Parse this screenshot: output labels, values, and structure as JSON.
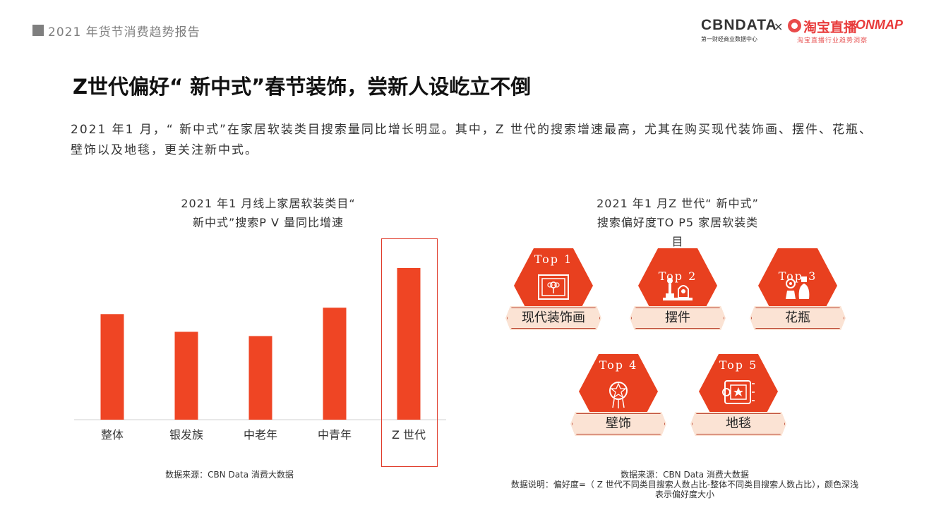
{
  "header": {
    "report_title": "2021 年货节消费趋势报告"
  },
  "logo": {
    "cbn_text": "CBNDATA",
    "cbn_sub": "第一财经商业数据中心",
    "cross": "×",
    "taobao_text": "淘宝直播",
    "onmap_text": "ONMAP",
    "taobao_sub": "淘宝直播行业趋势洞察"
  },
  "page": {
    "title": "Z世代偏好“ 新中式”春节装饰，尝新人设屹立不倒",
    "description": "2021 年1 月，“ 新中式”在家居软装类目搜索量同比增长明显。其中，Z 世代的搜索增速最高，尤其在购买现代装饰画、摆件、花瓶、壁饰以及地毯，更关注新中式。"
  },
  "chart_data": [
    {
      "type": "bar",
      "title_line1": "2021 年1 月线上家居软装类目“",
      "title_line2": "新中式”搜索P V 量同比增速",
      "categories": [
        "整体",
        "银发族",
        "中老年",
        "中青年",
        "Z 世代"
      ],
      "values": [
        1.49,
        1.24,
        1.18,
        1.58,
        2.14
      ],
      "highlight_category": "Z 世代",
      "bar_color": "#ef4524",
      "highlight_box_color": "#e03b2a",
      "source": "数据来源：CBN Data 消费大数据"
    }
  ],
  "right_panel": {
    "title_line1": "2021 年1 月Z 世代“ 新中式”",
    "title_line2": "搜索偏好度TO P5 家居软装类",
    "title_line3": "目",
    "hex_color": "#e8401f",
    "ribbon_color": "#fbe3d4",
    "items": [
      {
        "rank": "Top 1",
        "label": "现代装饰画",
        "icon": "framed-flower-painting-icon"
      },
      {
        "rank": "Top 2",
        "label": "摆件",
        "icon": "ornament-figurines-icon"
      },
      {
        "rank": "Top 3",
        "label": "花瓶",
        "icon": "vase-icon"
      },
      {
        "rank": "Top 4",
        "label": "壁饰",
        "icon": "dreamcatcher-icon"
      },
      {
        "rank": "Top 5",
        "label": "地毯",
        "icon": "rug-icon"
      }
    ],
    "source": "数据来源：CBN Data 消费大数据",
    "note_line1": "数据说明：偏好度=（ Z 世代不同类目搜索人数占比-整体不同类目搜索人数占比），颜色深浅",
    "note_line2": "表示偏好度大小"
  }
}
